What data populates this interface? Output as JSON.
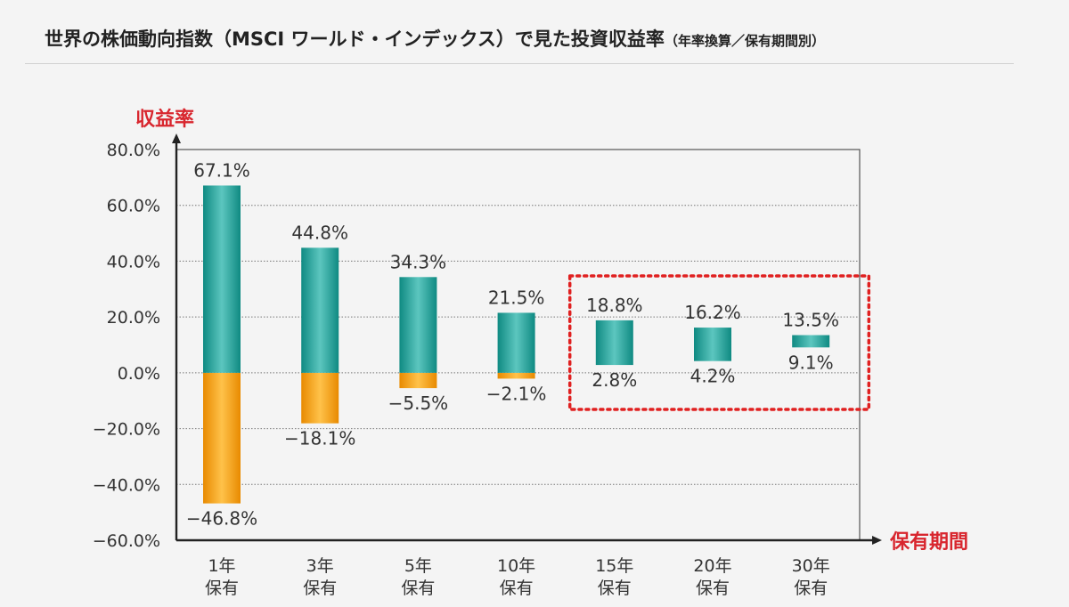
{
  "title": "世界の株価動向指数（MSCI ワールド・インデックス）で見た投資収益率",
  "subtitle": "（年率換算／保有期間別）",
  "chart_data": {
    "type": "bar",
    "subtype": "floating-range",
    "ylabel": "収益率",
    "xlabel": "保有期間",
    "ylim": [
      -60,
      80
    ],
    "yticks": [
      "80.0%",
      "60.0%",
      "40.0%",
      "20.0%",
      "0.0%",
      "−20.0%",
      "−40.0%",
      "−60.0%"
    ],
    "yticks_values": [
      80,
      60,
      40,
      20,
      0,
      -20,
      -40,
      -60
    ],
    "grid": true,
    "categories": [
      {
        "line1": "1年",
        "line2": "保有"
      },
      {
        "line1": "3年",
        "line2": "保有"
      },
      {
        "line1": "5年",
        "line2": "保有"
      },
      {
        "line1": "10年",
        "line2": "保有"
      },
      {
        "line1": "15年",
        "line2": "保有"
      },
      {
        "line1": "20年",
        "line2": "保有"
      },
      {
        "line1": "30年",
        "line2": "保有"
      }
    ],
    "series": [
      {
        "values": [
          67.1,
          44.8,
          34.3,
          21.5,
          18.8,
          16.2,
          13.5
        ],
        "labels": [
          "67.1%",
          "44.8%",
          "34.3%",
          "21.5%",
          "18.8%",
          "16.2%",
          "13.5%"
        ]
      },
      {
        "values": [
          -46.8,
          -18.1,
          -5.5,
          -2.1,
          2.8,
          4.2,
          9.1
        ],
        "labels": [
          "−46.8%",
          "−18.1%",
          "−5.5%",
          "−2.1%",
          "2.8%",
          "4.2%",
          "9.1%"
        ]
      }
    ],
    "colors": {
      "positive": "#1fa39a",
      "negative": "#f6a317",
      "axis_title": "#d8262e",
      "highlight": "#e02020"
    },
    "highlight_categories": [
      4,
      5,
      6
    ]
  }
}
